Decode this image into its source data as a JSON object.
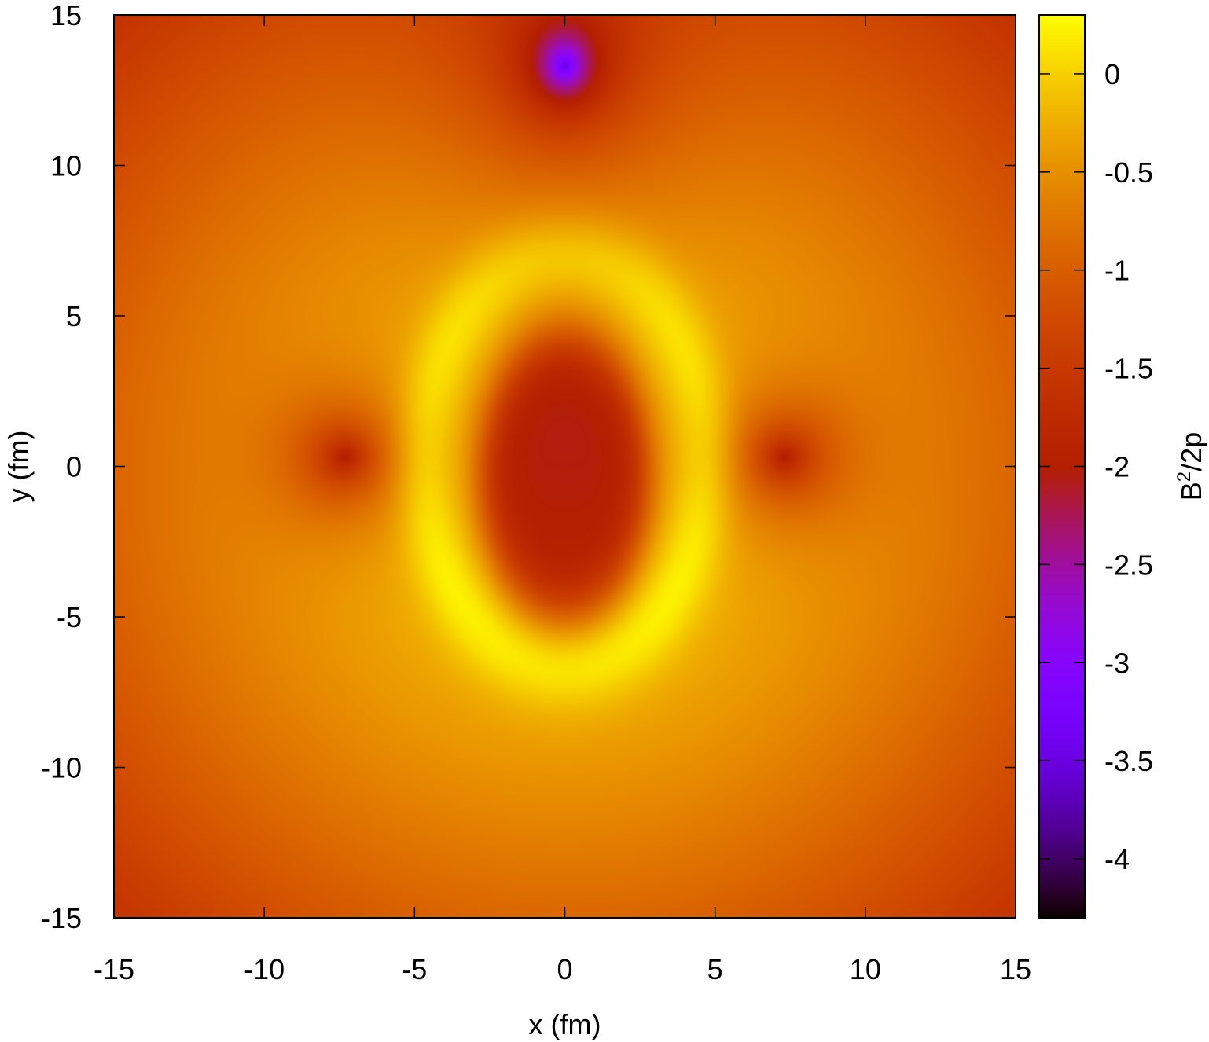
{
  "chart_data": {
    "type": "heatmap",
    "title": "",
    "xlabel": "x (fm)",
    "ylabel": "y (fm)",
    "xlim": [
      -15,
      15
    ],
    "ylim": [
      -15,
      15
    ],
    "x_ticks": [
      -15,
      -10,
      -5,
      0,
      5,
      10,
      15
    ],
    "x_tick_labels": [
      "-15",
      "-10",
      "-5",
      "0",
      "5",
      "10",
      "15"
    ],
    "y_ticks": [
      -15,
      -10,
      -5,
      0,
      5,
      10,
      15
    ],
    "y_tick_labels": [
      "-15",
      "-10",
      "-5",
      "0",
      "5",
      "10",
      "15"
    ],
    "grid": false,
    "colorbar": {
      "label_base": "B",
      "label_sup": "2",
      "label_rest": "/2p",
      "range": [
        -4.3,
        0.3
      ],
      "ticks": [
        0,
        -0.5,
        -1,
        -1.5,
        -2,
        -2.5,
        -3,
        -3.5,
        -4
      ],
      "tick_labels": [
        "0",
        "-0.5",
        "-1",
        "-1.5",
        "-2",
        "-2.5",
        "-3",
        "-3.5",
        "-4"
      ],
      "palette": "gnuplot default (rgbformulae 7,5,15)"
    },
    "features": [
      {
        "kind": "central_trough",
        "x": 0,
        "y": -0.3,
        "value": -1.95
      },
      {
        "kind": "side_minimum",
        "x": -7.3,
        "y": 0.3,
        "value": -2.2
      },
      {
        "kind": "side_minimum",
        "x": 7.3,
        "y": 0.3,
        "value": -2.2
      },
      {
        "kind": "top_minimum",
        "x": 0,
        "y": 13.3,
        "value": -4.3
      },
      {
        "kind": "ring_maximum",
        "radius_x": 4.5,
        "radius_y": 6.5,
        "value": 0.3
      },
      {
        "kind": "corner_level",
        "value": -1.6
      }
    ]
  }
}
